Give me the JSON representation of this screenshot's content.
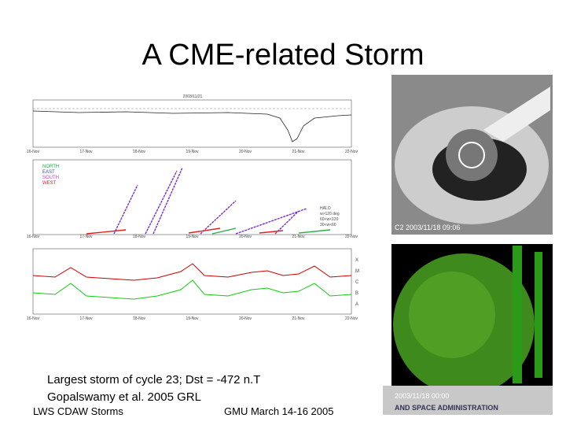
{
  "title": "A CME-related Storm",
  "figure": {
    "date": "2003/11/21",
    "days": [
      "16-Nov",
      "17-Nov",
      "18-Nov",
      "19-Nov",
      "20-Nov",
      "21-Nov",
      "22-Nov"
    ],
    "regions": [
      "NORTH",
      "EAST",
      "SOUTH",
      "WEST"
    ],
    "widths": [
      "HALO",
      "w>120 deg",
      "60<w<120",
      "30<w<60"
    ],
    "classes": [
      "X",
      "M",
      "C",
      "B",
      "A"
    ]
  },
  "coronagraph_label": "C2 2003/11/18 09:06",
  "euv": {
    "label": "2003/11/18 00:00",
    "banner": "AND SPACE ADMINISTRATION"
  },
  "caption": [
    "Largest storm of cycle 23; Dst = -472 n.T",
    "Gopalswamy et al. 2005 GRL"
  ],
  "footer": {
    "left": "LWS CDAW Storms",
    "right": "GMU March 14-16 2005"
  }
}
